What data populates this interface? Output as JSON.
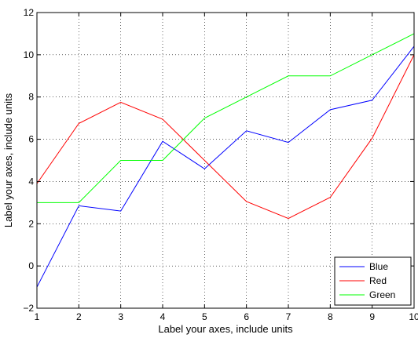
{
  "chart_data": {
    "type": "line",
    "title": "",
    "xlabel": "Label your axes, include units",
    "ylabel": "Label your axes, include units",
    "xlim": [
      1,
      10
    ],
    "ylim": [
      -2,
      12
    ],
    "x_ticks": [
      1,
      2,
      3,
      4,
      5,
      6,
      7,
      8,
      9,
      10
    ],
    "y_ticks": [
      -2,
      0,
      2,
      4,
      6,
      8,
      10,
      12
    ],
    "y_tick_labels": [
      "−2",
      "0",
      "2",
      "4",
      "6",
      "8",
      "10",
      "12"
    ],
    "grid": true,
    "grid_style": "dotted",
    "legend_position": "bottom-right",
    "x": [
      1,
      2,
      3,
      4,
      5,
      6,
      7,
      8,
      9,
      10
    ],
    "series": [
      {
        "name": "Blue",
        "color": "#0000ff",
        "values": [
          -1,
          2.85,
          2.6,
          5.9,
          4.6,
          6.4,
          5.85,
          7.4,
          7.85,
          10.4
        ]
      },
      {
        "name": "Red",
        "color": "#ff0000",
        "values": [
          3.9,
          6.75,
          7.75,
          6.95,
          5.0,
          3.05,
          2.25,
          3.25,
          6.05,
          10.0
        ]
      },
      {
        "name": "Green",
        "color": "#00ff00",
        "values": [
          3,
          3,
          5,
          5,
          7,
          8,
          9,
          9,
          10,
          11
        ]
      }
    ]
  }
}
